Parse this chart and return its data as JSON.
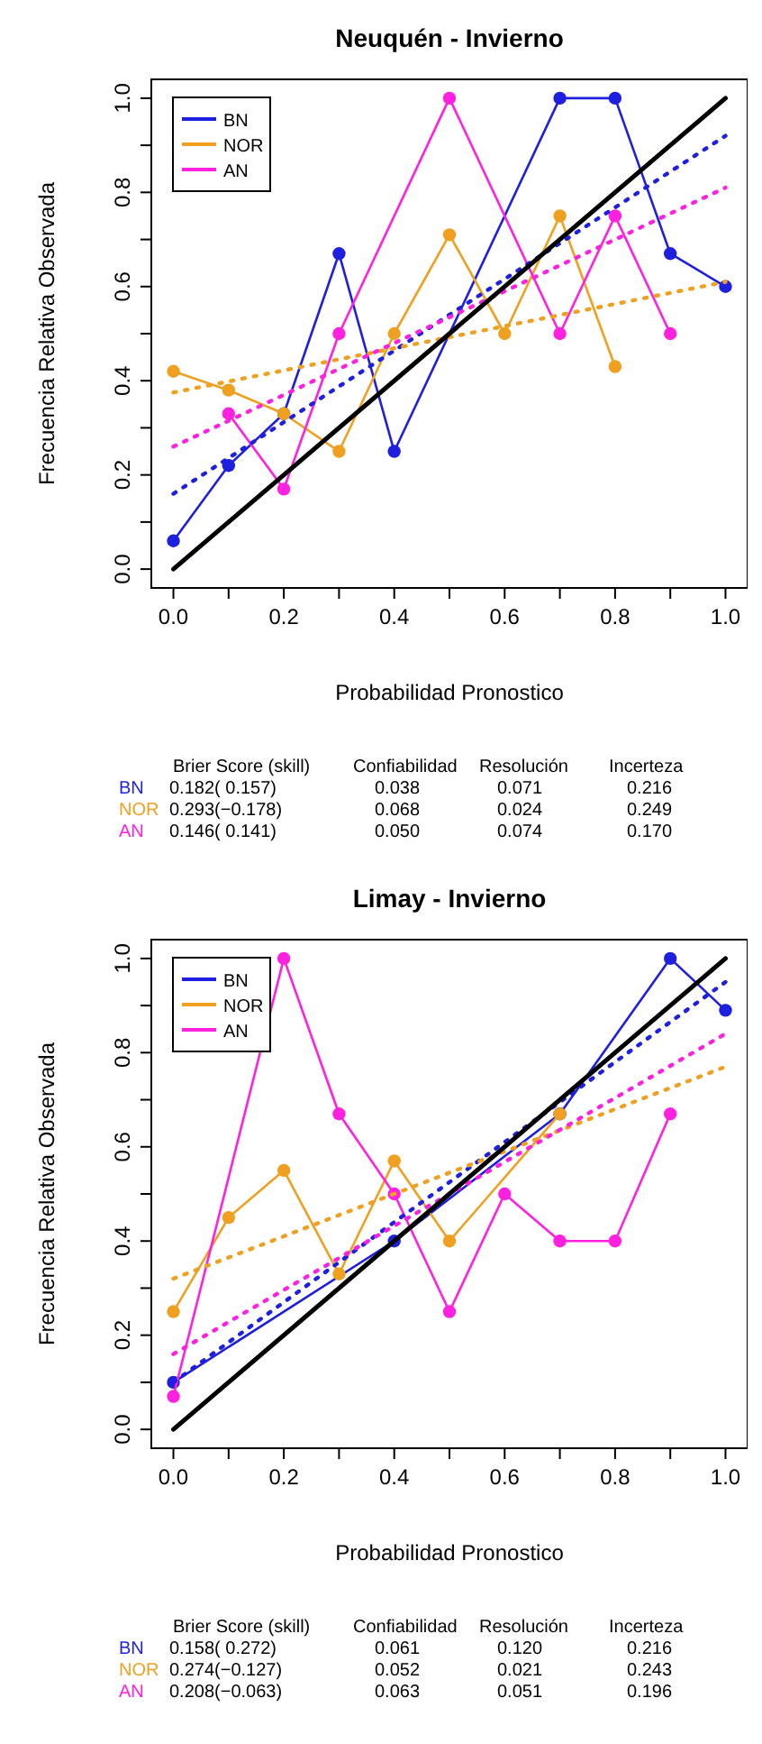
{
  "chart_data": [
    {
      "type": "line",
      "title": "Neuquén - Invierno",
      "xlabel": "Probabilidad Pronostico",
      "ylabel": "Frecuencia Relativa Observada",
      "xlim": [
        -0.04,
        1.04
      ],
      "ylim": [
        -0.04,
        1.04
      ],
      "xticks": [
        {
          "value": 0,
          "label": "0.0"
        },
        {
          "value": 0.1,
          "label": null
        },
        {
          "value": 0.2,
          "label": "0.2"
        },
        {
          "value": 0.3,
          "label": null
        },
        {
          "value": 0.4,
          "label": "0.4"
        },
        {
          "value": 0.5,
          "label": null
        },
        {
          "value": 0.6,
          "label": "0.6"
        },
        {
          "value": 0.7,
          "label": null
        },
        {
          "value": 0.8,
          "label": "0.8"
        },
        {
          "value": 0.9,
          "label": null
        },
        {
          "value": 1,
          "label": "1.0"
        }
      ],
      "yticks": [
        {
          "value": 0,
          "label": "0.0"
        },
        {
          "value": 0.1,
          "label": null
        },
        {
          "value": 0.2,
          "label": "0.2"
        },
        {
          "value": 0.3,
          "label": null
        },
        {
          "value": 0.4,
          "label": "0.4"
        },
        {
          "value": 0.5,
          "label": null
        },
        {
          "value": 0.6,
          "label": "0.6"
        },
        {
          "value": 0.7,
          "label": null
        },
        {
          "value": 0.8,
          "label": "0.8"
        },
        {
          "value": 0.9,
          "label": null
        },
        {
          "value": 1,
          "label": "1.0"
        }
      ],
      "legend": "top left",
      "grid": false,
      "series": [
        {
          "name": "BN",
          "color": "#1f1fe0",
          "marker": "circle",
          "line_style": "solid",
          "x": [
            0,
            0.1,
            0.2,
            0.3,
            0.4,
            0.7,
            0.8,
            0.9,
            1
          ],
          "values": [
            0.06,
            0.22,
            0.33,
            0.67,
            0.25,
            1,
            1,
            0.67,
            0.6
          ]
        },
        {
          "name": "NOR",
          "color": "#f0a020",
          "marker": "circle",
          "line_style": "solid",
          "x": [
            0,
            0.1,
            0.2,
            0.3,
            0.4,
            0.5,
            0.6,
            0.7,
            0.8
          ],
          "values": [
            0.42,
            0.38,
            0.33,
            0.25,
            0.5,
            0.71,
            0.5,
            0.75,
            0.43
          ]
        },
        {
          "name": "AN",
          "color": "#ff20e0",
          "marker": "circle",
          "line_style": "solid",
          "x": [
            0.1,
            0.2,
            0.3,
            0.5,
            0.7,
            0.8,
            0.9
          ],
          "values": [
            0.33,
            0.17,
            0.5,
            1,
            0.5,
            0.75,
            0.5
          ]
        },
        {
          "color": "#1f1fe0",
          "marker": "none",
          "line_style": "dotted",
          "x": [
            0,
            1
          ],
          "values": [
            0.16,
            0.92
          ]
        },
        {
          "color": "#f0a020",
          "marker": "none",
          "line_style": "dotted",
          "x": [
            0,
            1
          ],
          "values": [
            0.375,
            0.61
          ]
        },
        {
          "color": "#ff20e0",
          "marker": "none",
          "line_style": "dotted",
          "x": [
            0,
            1
          ],
          "values": [
            0.26,
            0.81
          ]
        },
        {
          "color": "#000000",
          "marker": "none",
          "line_style": "solid",
          "x": [
            0,
            1
          ],
          "values": [
            0,
            1
          ]
        }
      ],
      "annotations": [
        "Brier Score (skill)",
        "Confiabilidad",
        "Resolución",
        "Incerteza",
        "BN",
        "0.182( 0.157)",
        "0.038",
        "0.071",
        "0.216",
        "NOR",
        "0.293(−0.178)",
        "0.068",
        "0.024",
        "0.249",
        "AN",
        "0.146( 0.141)",
        "0.050",
        "0.074",
        "0.170"
      ]
    },
    {
      "type": "line",
      "title": "Limay - Invierno",
      "xlabel": "Probabilidad Pronostico",
      "ylabel": "Frecuencia Relativa Observada",
      "xlim": [
        -0.04,
        1.04
      ],
      "ylim": [
        -0.04,
        1.04
      ],
      "xticks": [
        {
          "value": 0,
          "label": "0.0"
        },
        {
          "value": 0.1,
          "label": null
        },
        {
          "value": 0.2,
          "label": "0.2"
        },
        {
          "value": 0.3,
          "label": null
        },
        {
          "value": 0.4,
          "label": "0.4"
        },
        {
          "value": 0.5,
          "label": null
        },
        {
          "value": 0.6,
          "label": "0.6"
        },
        {
          "value": 0.7,
          "label": null
        },
        {
          "value": 0.8,
          "label": "0.8"
        },
        {
          "value": 0.9,
          "label": null
        },
        {
          "value": 1,
          "label": "1.0"
        }
      ],
      "yticks": [
        {
          "value": 0,
          "label": "0.0"
        },
        {
          "value": 0.1,
          "label": null
        },
        {
          "value": 0.2,
          "label": "0.2"
        },
        {
          "value": 0.3,
          "label": null
        },
        {
          "value": 0.4,
          "label": "0.4"
        },
        {
          "value": 0.5,
          "label": null
        },
        {
          "value": 0.6,
          "label": "0.6"
        },
        {
          "value": 0.7,
          "label": null
        },
        {
          "value": 0.8,
          "label": "0.8"
        },
        {
          "value": 0.9,
          "label": null
        },
        {
          "value": 1,
          "label": "1.0"
        }
      ],
      "legend": "top left",
      "grid": false,
      "series": [
        {
          "name": "BN",
          "color": "#1f1fe0",
          "marker": "circle",
          "line_style": "solid",
          "x": [
            0,
            0.4,
            0.7,
            0.9,
            1
          ],
          "values": [
            0.1,
            0.4,
            0.67,
            1,
            0.89
          ]
        },
        {
          "name": "NOR",
          "color": "#f0a020",
          "marker": "circle",
          "line_style": "solid",
          "x": [
            0,
            0.1,
            0.2,
            0.3,
            0.4,
            0.5,
            0.7
          ],
          "values": [
            0.25,
            0.45,
            0.55,
            0.33,
            0.57,
            0.4,
            0.67
          ]
        },
        {
          "name": "AN",
          "color": "#ff20e0",
          "marker": "circle",
          "line_style": "solid",
          "x": [
            0,
            0.2,
            0.3,
            0.4,
            0.5,
            0.6,
            0.7,
            0.8,
            0.9
          ],
          "values": [
            0.07,
            1,
            0.67,
            0.5,
            0.25,
            0.5,
            0.4,
            0.4,
            0.67
          ]
        },
        {
          "color": "#1f1fe0",
          "marker": "none",
          "line_style": "dotted",
          "x": [
            0,
            1
          ],
          "values": [
            0.1,
            0.95
          ]
        },
        {
          "color": "#f0a020",
          "marker": "none",
          "line_style": "dotted",
          "x": [
            0,
            1
          ],
          "values": [
            0.32,
            0.77
          ]
        },
        {
          "color": "#ff20e0",
          "marker": "none",
          "line_style": "dotted",
          "x": [
            0,
            1
          ],
          "values": [
            0.16,
            0.84
          ]
        },
        {
          "color": "#000000",
          "marker": "none",
          "line_style": "solid",
          "x": [
            0,
            1
          ],
          "values": [
            0,
            1
          ]
        }
      ],
      "annotations": [
        "Brier Score (skill)",
        "Confiabilidad",
        "Resolución",
        "Incerteza",
        "BN",
        "0.158( 0.272)",
        "0.061",
        "0.120",
        "0.216",
        "NOR",
        "0.274(−0.127)",
        "0.052",
        "0.021",
        "0.243",
        "AN",
        "0.208(−0.063)",
        "0.063",
        "0.051",
        "0.196"
      ]
    }
  ]
}
